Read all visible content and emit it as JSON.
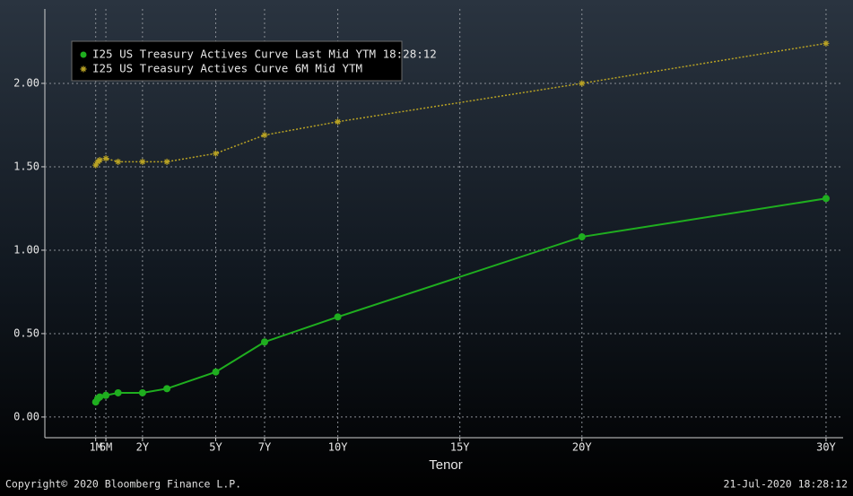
{
  "chart_data": {
    "type": "line",
    "x_label": "Tenor",
    "x": [
      0.0833,
      0.1667,
      0.25,
      0.5,
      1,
      2,
      3,
      5,
      7,
      10,
      20,
      30
    ],
    "series": [
      {
        "name": "I25 US Treasury Actives Curve Last Mid YTM 18:28:12",
        "color": "#1fae1f",
        "marker": "dot",
        "values": [
          0.09,
          0.11,
          0.12,
          0.13,
          0.145,
          0.145,
          0.17,
          0.27,
          0.45,
          0.6,
          1.08,
          1.31
        ]
      },
      {
        "name": "I25 US Treasury Actives Curve 6M Mid YTM",
        "color": "#b9a324",
        "marker": "star",
        "values": [
          1.51,
          1.53,
          1.54,
          1.55,
          1.53,
          1.53,
          1.53,
          1.58,
          1.69,
          1.77,
          2.0,
          2.24
        ]
      }
    ],
    "xlim": [
      -2,
      30.7
    ],
    "xticks": [
      {
        "value": 0.0833,
        "label": "1M"
      },
      {
        "value": 0.5,
        "label": "6M"
      },
      {
        "value": 2,
        "label": "2Y"
      },
      {
        "value": 5,
        "label": "5Y"
      },
      {
        "value": 7,
        "label": "7Y"
      },
      {
        "value": 10,
        "label": "10Y"
      },
      {
        "value": 15,
        "label": "15Y"
      },
      {
        "value": 20,
        "label": "20Y"
      },
      {
        "value": 30,
        "label": "30Y"
      }
    ],
    "ylim": [
      -0.124,
      2.446
    ],
    "yticks": [
      {
        "value": 0,
        "label": "0.00"
      },
      {
        "value": 0.5,
        "label": "0.50"
      },
      {
        "value": 1,
        "label": "1.00"
      },
      {
        "value": 1.5,
        "label": "1.50"
      },
      {
        "value": 2,
        "label": "2.00"
      }
    ],
    "grid": true,
    "legend": "top-left",
    "footer_left": "Copyright© 2020 Bloomberg Finance L.P.",
    "footer_right": "21-Jul-2020 18:28:12"
  }
}
